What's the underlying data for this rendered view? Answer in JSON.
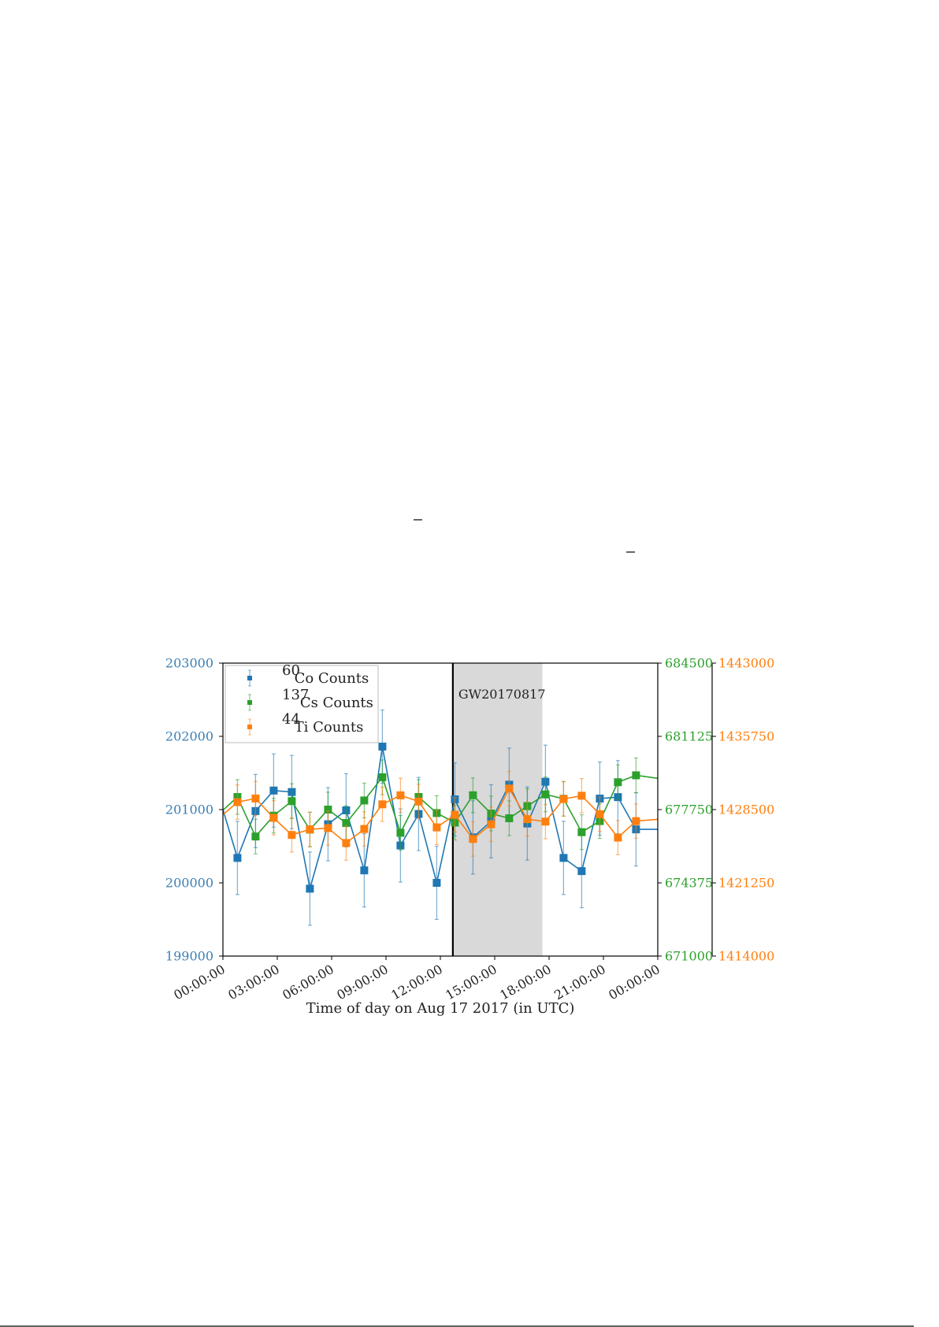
{
  "chart_data": {
    "type": "line",
    "xlabel": "Time of day on Aug 17 2017 (in UTC)",
    "x_tick_labels": [
      "00:00:00",
      "03:00:00",
      "06:00:00",
      "09:00:00",
      "12:00:00",
      "15:00:00",
      "18:00:00",
      "21:00:00",
      "00:00:00"
    ],
    "x_tick_hours": [
      0,
      3,
      6,
      9,
      12,
      15,
      18,
      21,
      24
    ],
    "xlim_hours": [
      0,
      24
    ],
    "annotation": {
      "label": "GW20170817",
      "event_hour": 12.69,
      "shaded_hours": [
        12.69,
        17.63
      ]
    },
    "axes": {
      "left": {
        "color": "#3a7fb5",
        "ylim": [
          199000,
          203000
        ],
        "ticks": [
          "199000",
          "200000",
          "201000",
          "202000",
          "203000"
        ],
        "tick_values": [
          199000,
          200000,
          201000,
          202000,
          203000
        ]
      },
      "right1": {
        "color": "#2ca02c",
        "ylim": [
          671000,
          684500
        ],
        "ticks": [
          "671000",
          "674375",
          "677750",
          "681125",
          "684500"
        ],
        "tick_values": [
          671000,
          674375,
          677750,
          681125,
          684500
        ]
      },
      "right2": {
        "color": "#ff7f0e",
        "ylim": [
          1414000,
          1443000
        ],
        "ticks": [
          "1414000",
          "1421250",
          "1428500",
          "1435750",
          "1443000"
        ],
        "tick_values": [
          1414000,
          1421250,
          1428500,
          1435750,
          1443000
        ]
      }
    },
    "series": [
      {
        "name": "Co Counts",
        "isotope_mass": "60",
        "axis": "left",
        "color": "#1f77b4",
        "points": [
          [
            0,
            201000,
            0
          ],
          [
            0.8,
            200340,
            500
          ],
          [
            1.8,
            200980,
            500
          ],
          [
            2.8,
            201260,
            500
          ],
          [
            3.8,
            201240,
            500
          ],
          [
            4.8,
            199920,
            500
          ],
          [
            5.8,
            200800,
            500
          ],
          [
            6.8,
            200990,
            500
          ],
          [
            7.8,
            200170,
            500
          ],
          [
            8.8,
            201860,
            500
          ],
          [
            9.8,
            200510,
            500
          ],
          [
            10.8,
            200940,
            500
          ],
          [
            11.8,
            200000,
            500
          ],
          [
            12.8,
            201140,
            500
          ],
          [
            13.8,
            200620,
            500
          ],
          [
            14.8,
            200840,
            500
          ],
          [
            15.8,
            201340,
            500
          ],
          [
            16.8,
            200810,
            500
          ],
          [
            17.8,
            201380,
            500
          ],
          [
            18.8,
            200340,
            500
          ],
          [
            19.8,
            200160,
            500
          ],
          [
            20.8,
            201150,
            500
          ],
          [
            21.8,
            201170,
            500
          ],
          [
            22.8,
            200730,
            500
          ],
          [
            24,
            200730,
            0
          ]
        ]
      },
      {
        "name": "Cs Counts",
        "isotope_mass": "137",
        "axis": "right1",
        "color": "#2ca02c",
        "points": [
          [
            0,
            677720,
            0
          ],
          [
            0.8,
            678330,
            800
          ],
          [
            1.8,
            676510,
            800
          ],
          [
            2.8,
            677470,
            800
          ],
          [
            3.8,
            678140,
            800
          ],
          [
            4.8,
            676830,
            800
          ],
          [
            5.8,
            677750,
            800
          ],
          [
            6.8,
            677130,
            800
          ],
          [
            7.8,
            678170,
            800
          ],
          [
            8.8,
            679240,
            800
          ],
          [
            9.8,
            676680,
            800
          ],
          [
            10.8,
            678330,
            800
          ],
          [
            11.8,
            677590,
            800
          ],
          [
            12.8,
            677150,
            800
          ],
          [
            13.8,
            678410,
            800
          ],
          [
            14.8,
            677570,
            800
          ],
          [
            15.8,
            677350,
            800
          ],
          [
            16.8,
            677910,
            800
          ],
          [
            17.8,
            678450,
            800
          ],
          [
            18.8,
            678250,
            800
          ],
          [
            19.8,
            676710,
            800
          ],
          [
            20.8,
            677220,
            800
          ],
          [
            21.8,
            679010,
            800
          ],
          [
            22.8,
            679330,
            800
          ],
          [
            24,
            679190,
            0
          ]
        ]
      },
      {
        "name": "Ti Counts",
        "isotope_mass": "44",
        "axis": "right2",
        "color": "#ff7f0e",
        "points": [
          [
            0,
            1427990,
            0
          ],
          [
            0.8,
            1429240,
            1700
          ],
          [
            1.8,
            1429600,
            1700
          ],
          [
            2.8,
            1427680,
            1700
          ],
          [
            3.8,
            1425990,
            1700
          ],
          [
            4.8,
            1426540,
            1700
          ],
          [
            5.8,
            1426670,
            1700
          ],
          [
            6.8,
            1425190,
            1700
          ],
          [
            7.8,
            1426580,
            1700
          ],
          [
            8.8,
            1429020,
            1700
          ],
          [
            9.8,
            1429910,
            1700
          ],
          [
            10.8,
            1429300,
            1700
          ],
          [
            11.8,
            1426740,
            1700
          ],
          [
            12.8,
            1427990,
            1700
          ],
          [
            13.8,
            1425590,
            1700
          ],
          [
            14.8,
            1427040,
            1700
          ],
          [
            15.8,
            1430580,
            1700
          ],
          [
            16.8,
            1427560,
            1700
          ],
          [
            17.8,
            1427310,
            1700
          ],
          [
            18.8,
            1429550,
            1700
          ],
          [
            19.8,
            1429870,
            1700
          ],
          [
            20.8,
            1428040,
            1700
          ],
          [
            21.8,
            1425730,
            1700
          ],
          [
            22.8,
            1427360,
            1700
          ],
          [
            24,
            1427540,
            0
          ]
        ]
      }
    ]
  }
}
